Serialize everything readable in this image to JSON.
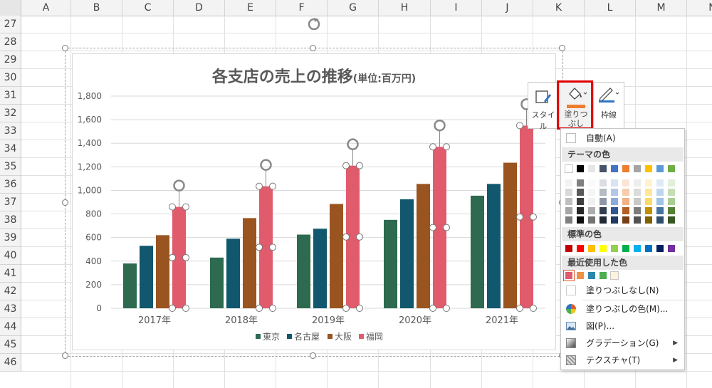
{
  "spreadsheet": {
    "columns": [
      "A",
      "B",
      "C",
      "D",
      "E",
      "F",
      "G",
      "H",
      "I",
      "J",
      "K",
      "L",
      "M",
      "N"
    ],
    "rows": [
      "27",
      "28",
      "29",
      "30",
      "31",
      "32",
      "33",
      "34",
      "35",
      "36",
      "37",
      "38",
      "39",
      "40",
      "41",
      "42",
      "43",
      "44",
      "45",
      "46"
    ]
  },
  "chart_data": {
    "type": "bar",
    "title": "各支店の売上の推移",
    "subtitle": "(単位:百万円)",
    "categories": [
      "2017年",
      "2018年",
      "2019年",
      "2020年",
      "2021年"
    ],
    "series": [
      {
        "name": "東京",
        "color": "#2d6a4f",
        "values": [
          380,
          430,
          625,
          750,
          955
        ]
      },
      {
        "name": "名古屋",
        "color": "#11576e",
        "values": [
          530,
          590,
          675,
          925,
          1055
        ]
      },
      {
        "name": "大阪",
        "color": "#9a5420",
        "values": [
          620,
          765,
          885,
          1055,
          1235
        ]
      },
      {
        "name": "福岡",
        "color": "#e05b6c",
        "values": [
          860,
          1035,
          1210,
          1370,
          1550
        ]
      }
    ],
    "ylim": [
      0,
      1800
    ],
    "yticks": [
      "0",
      "200",
      "400",
      "600",
      "800",
      "1,000",
      "1,200",
      "1,400",
      "1,600",
      "1,800"
    ],
    "grid": true,
    "legend": "bottom",
    "selected_series": "福岡"
  },
  "format_buttons": {
    "style_label": "スタイル",
    "fill_label": "塗りつ\nぶし",
    "outline_label": "枠線",
    "fill_bar_color": "#ed7d31"
  },
  "fill_menu": {
    "auto_label": "自動(A)",
    "theme_header": "テーマの色",
    "theme_colors": [
      "#ffffff",
      "#000000",
      "#e7e6e6",
      "#44546a",
      "#4472c4",
      "#ed7d31",
      "#a5a5a5",
      "#ffc000",
      "#5b9bd5",
      "#70ad47"
    ],
    "standard_header": "標準の色",
    "standard_colors": [
      "#c00000",
      "#ff0000",
      "#ffc000",
      "#ffff00",
      "#92d050",
      "#00b050",
      "#00b0f0",
      "#0070c0",
      "#002060",
      "#7030a0"
    ],
    "recent_header": "最近使用した色",
    "recent_colors": [
      "#e05b6c",
      "#ed9146",
      "#2e86ab",
      "#4caf50",
      "#fdf3dc"
    ],
    "no_fill_label": "塗りつぶしなし(N)",
    "more_colors_label": "塗りつぶしの色(M)...",
    "picture_label": "図(P)...",
    "gradient_label": "グラデーション(G)",
    "texture_label": "テクスチャ(T)"
  }
}
